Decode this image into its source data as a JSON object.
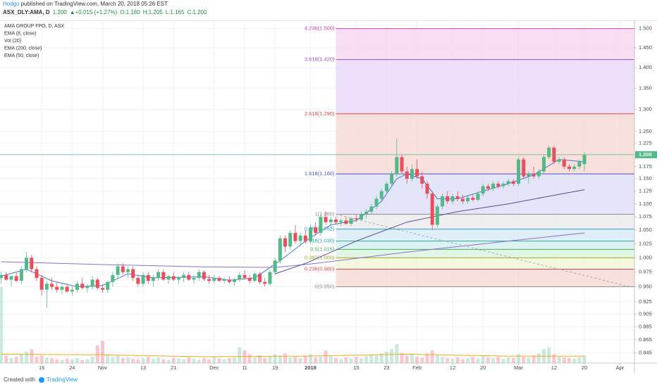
{
  "header": {
    "author": "Hodgo",
    "published": "published on TradingView.com, March 20, 2018 05:26 EST",
    "symbol": "ASX_DLY:AMA, D",
    "price": "1.200",
    "change": "▲+0.015 (+1.27%)",
    "ohlc": [
      "O:1.180",
      "H:1.205",
      "L:1.165",
      "C:1.200"
    ]
  },
  "footer": {
    "created": "Created with",
    "brand": "TradingView"
  },
  "chart_data": {
    "type": "candlestick",
    "legend": [
      "AMA GROUP FPO, D, ASX",
      "EMA (8, close)",
      "Vol (20)",
      "EMA (200, close)",
      "EMA (50, close)"
    ],
    "up_color": "#53b987",
    "down_color": "#eb4d5c",
    "candles": [
      [
        0.965,
        0.975,
        0.955,
        0.97
      ],
      [
        0.97,
        0.975,
        0.96,
        0.962
      ],
      [
        0.962,
        0.97,
        0.95,
        0.968
      ],
      [
        0.968,
        0.975,
        0.958,
        0.96
      ],
      [
        0.96,
        0.985,
        0.955,
        0.98
      ],
      [
        0.98,
        1.01,
        0.975,
        1.0
      ],
      [
        1.0,
        1.005,
        0.975,
        0.98
      ],
      [
        0.98,
        0.985,
        0.96,
        0.965
      ],
      [
        0.965,
        0.97,
        0.935,
        0.945
      ],
      [
        0.945,
        0.96,
        0.915,
        0.955
      ],
      [
        0.955,
        0.965,
        0.945,
        0.95
      ],
      [
        0.95,
        0.958,
        0.94,
        0.945
      ],
      [
        0.945,
        0.955,
        0.938,
        0.95
      ],
      [
        0.95,
        0.955,
        0.94,
        0.942
      ],
      [
        0.942,
        0.95,
        0.935,
        0.945
      ],
      [
        0.945,
        0.96,
        0.94,
        0.955
      ],
      [
        0.955,
        0.965,
        0.945,
        0.948
      ],
      [
        0.948,
        0.955,
        0.94,
        0.95
      ],
      [
        0.95,
        0.968,
        0.945,
        0.962
      ],
      [
        0.962,
        0.965,
        0.945,
        0.948
      ],
      [
        0.948,
        0.955,
        0.94,
        0.945
      ],
      [
        0.945,
        0.96,
        0.94,
        0.958
      ],
      [
        0.958,
        0.975,
        0.95,
        0.97
      ],
      [
        0.97,
        0.99,
        0.965,
        0.985
      ],
      [
        0.985,
        0.99,
        0.97,
        0.975
      ],
      [
        0.975,
        0.985,
        0.965,
        0.98
      ],
      [
        0.98,
        0.985,
        0.96,
        0.965
      ],
      [
        0.965,
        0.97,
        0.95,
        0.955
      ],
      [
        0.955,
        0.975,
        0.95,
        0.97
      ],
      [
        0.97,
        0.975,
        0.955,
        0.96
      ],
      [
        0.96,
        0.97,
        0.95,
        0.965
      ],
      [
        0.965,
        0.98,
        0.96,
        0.975
      ],
      [
        0.975,
        0.98,
        0.96,
        0.962
      ],
      [
        0.962,
        0.97,
        0.955,
        0.968
      ],
      [
        0.968,
        0.975,
        0.96,
        0.962
      ],
      [
        0.962,
        0.968,
        0.955,
        0.965
      ],
      [
        0.965,
        0.975,
        0.958,
        0.97
      ],
      [
        0.97,
        0.975,
        0.96,
        0.962
      ],
      [
        0.962,
        0.97,
        0.955,
        0.965
      ],
      [
        0.965,
        0.98,
        0.96,
        0.975
      ],
      [
        0.975,
        0.978,
        0.96,
        0.963
      ],
      [
        0.963,
        0.97,
        0.955,
        0.96
      ],
      [
        0.96,
        0.97,
        0.955,
        0.965
      ],
      [
        0.965,
        0.968,
        0.958,
        0.96
      ],
      [
        0.96,
        0.965,
        0.955,
        0.962
      ],
      [
        0.962,
        0.968,
        0.955,
        0.958
      ],
      [
        0.958,
        0.965,
        0.952,
        0.962
      ],
      [
        0.962,
        0.975,
        0.958,
        0.97
      ],
      [
        0.97,
        0.978,
        0.962,
        0.965
      ],
      [
        0.965,
        0.97,
        0.955,
        0.96
      ],
      [
        0.96,
        0.975,
        0.958,
        0.972
      ],
      [
        0.972,
        0.975,
        0.955,
        0.958
      ],
      [
        0.958,
        0.965,
        0.95,
        0.955
      ],
      [
        0.955,
        0.978,
        0.952,
        0.975
      ],
      [
        0.975,
        1.0,
        0.97,
        0.995
      ],
      [
        0.995,
        1.04,
        0.99,
        1.035
      ],
      [
        1.035,
        1.04,
        1.01,
        1.02
      ],
      [
        1.02,
        1.05,
        1.015,
        1.045
      ],
      [
        1.045,
        1.06,
        1.025,
        1.03
      ],
      [
        1.03,
        1.045,
        1.02,
        1.04
      ],
      [
        1.04,
        1.05,
        1.025,
        1.03
      ],
      [
        1.03,
        1.06,
        1.025,
        1.055
      ],
      [
        1.055,
        1.065,
        1.04,
        1.045
      ],
      [
        1.045,
        1.08,
        1.04,
        1.075
      ],
      [
        1.075,
        1.085,
        1.06,
        1.065
      ],
      [
        1.065,
        1.075,
        1.055,
        1.07
      ],
      [
        1.07,
        1.075,
        1.06,
        1.065
      ],
      [
        1.065,
        1.072,
        1.058,
        1.068
      ],
      [
        1.068,
        1.075,
        1.06,
        1.062
      ],
      [
        1.062,
        1.075,
        1.058,
        1.072
      ],
      [
        1.072,
        1.08,
        1.065,
        1.07
      ],
      [
        1.07,
        1.085,
        1.068,
        1.08
      ],
      [
        1.08,
        1.09,
        1.072,
        1.085
      ],
      [
        1.085,
        1.1,
        1.08,
        1.095
      ],
      [
        1.095,
        1.115,
        1.09,
        1.11
      ],
      [
        1.11,
        1.13,
        1.105,
        1.125
      ],
      [
        1.125,
        1.145,
        1.12,
        1.14
      ],
      [
        1.14,
        1.165,
        1.135,
        1.16
      ],
      [
        1.16,
        1.235,
        1.155,
        1.195
      ],
      [
        1.195,
        1.2,
        1.16,
        1.165
      ],
      [
        1.165,
        1.175,
        1.14,
        1.15
      ],
      [
        1.15,
        1.18,
        1.145,
        1.17
      ],
      [
        1.17,
        1.19,
        1.15,
        1.155
      ],
      [
        1.155,
        1.165,
        1.13,
        1.14
      ],
      [
        1.14,
        1.145,
        1.11,
        1.12
      ],
      [
        1.12,
        1.125,
        1.05,
        1.06
      ],
      [
        1.06,
        1.1,
        1.055,
        1.095
      ],
      [
        1.095,
        1.12,
        1.09,
        1.115
      ],
      [
        1.115,
        1.125,
        1.1,
        1.105
      ],
      [
        1.105,
        1.12,
        1.1,
        1.115
      ],
      [
        1.115,
        1.125,
        1.105,
        1.11
      ],
      [
        1.11,
        1.118,
        1.1,
        1.105
      ],
      [
        1.105,
        1.115,
        1.1,
        1.112
      ],
      [
        1.112,
        1.118,
        1.105,
        1.108
      ],
      [
        1.108,
        1.125,
        1.105,
        1.12
      ],
      [
        1.12,
        1.14,
        1.115,
        1.135
      ],
      [
        1.135,
        1.14,
        1.125,
        1.13
      ],
      [
        1.13,
        1.145,
        1.125,
        1.14
      ],
      [
        1.14,
        1.145,
        1.13,
        1.135
      ],
      [
        1.135,
        1.145,
        1.13,
        1.14
      ],
      [
        1.14,
        1.15,
        1.135,
        1.145
      ],
      [
        1.145,
        1.15,
        1.135,
        1.14
      ],
      [
        1.14,
        1.195,
        1.135,
        1.19
      ],
      [
        1.19,
        1.195,
        1.15,
        1.155
      ],
      [
        1.155,
        1.165,
        1.14,
        1.16
      ],
      [
        1.16,
        1.175,
        1.15,
        1.155
      ],
      [
        1.155,
        1.17,
        1.15,
        1.165
      ],
      [
        1.165,
        1.2,
        1.16,
        1.195
      ],
      [
        1.195,
        1.22,
        1.19,
        1.215
      ],
      [
        1.215,
        1.22,
        1.18,
        1.185
      ],
      [
        1.185,
        1.195,
        1.18,
        1.19
      ],
      [
        1.19,
        1.195,
        1.17,
        1.175
      ],
      [
        1.175,
        1.18,
        1.165,
        1.17
      ],
      [
        1.17,
        1.18,
        1.165,
        1.175
      ],
      [
        1.175,
        1.19,
        1.17,
        1.185
      ],
      [
        1.18,
        1.205,
        1.165,
        1.2
      ]
    ],
    "volume": [
      120,
      12,
      8,
      10,
      14,
      18,
      22,
      10,
      12,
      9,
      8,
      6,
      5,
      7,
      6,
      8,
      5,
      6,
      10,
      28,
      35,
      14,
      10,
      12,
      8,
      9,
      7,
      6,
      8,
      10,
      7,
      9,
      6,
      5,
      8,
      7,
      6,
      9,
      7,
      5,
      8,
      6,
      10,
      7,
      6,
      8,
      9,
      25,
      20,
      14,
      9,
      12,
      8,
      10,
      14,
      12,
      15,
      9,
      10,
      8,
      11,
      14,
      9,
      10,
      20,
      12,
      8,
      6,
      9,
      7,
      10,
      8,
      11,
      14,
      12,
      15,
      18,
      22,
      30,
      16,
      12,
      14,
      10,
      9,
      15,
      20,
      13,
      10,
      8,
      7,
      9,
      6,
      8,
      10,
      7,
      12,
      9,
      8,
      10,
      7,
      9,
      8,
      14,
      10,
      9,
      12,
      15,
      22,
      25,
      14,
      10,
      9,
      8,
      7,
      9,
      12
    ],
    "lines": [
      {
        "color": "#3c78d8",
        "x": [
          0,
          5,
          10,
          15,
          20,
          25,
          30,
          35,
          40,
          45,
          50,
          55,
          60,
          65,
          70,
          75,
          78,
          80,
          83,
          86,
          90,
          95,
          100,
          105,
          110,
          115
        ],
        "values": [
          0.968,
          0.98,
          0.96,
          0.95,
          0.952,
          0.972,
          0.965,
          0.966,
          0.967,
          0.961,
          0.965,
          0.995,
          1.03,
          1.06,
          1.068,
          1.105,
          1.15,
          1.16,
          1.15,
          1.11,
          1.11,
          1.125,
          1.14,
          1.158,
          1.19,
          1.185
        ]
      },
      {
        "color": "#f5a623",
        "pane": "volume",
        "x": [
          0,
          20,
          40,
          60,
          80,
          100,
          115
        ],
        "values": [
          14,
          13,
          10,
          11,
          14,
          11,
          11
        ]
      },
      {
        "color": "#8e6ccf",
        "x": [
          0,
          20,
          40,
          54,
          62,
          80,
          100,
          115
        ],
        "values": [
          0.993,
          0.988,
          0.984,
          0.983,
          0.99,
          1.01,
          1.03,
          1.045
        ]
      },
      {
        "color": "#5d4a9c",
        "x": [
          54,
          60,
          70,
          80,
          90,
          100,
          108,
          115
        ],
        "values": [
          0.972,
          0.99,
          1.03,
          1.065,
          1.085,
          1.1,
          1.115,
          1.128
        ]
      }
    ],
    "fib": {
      "x_start": 66,
      "levels": [
        {
          "label": "4.236(1.500)",
          "value": 1.5,
          "color": "#d63fb0",
          "fill": "#f7d3ec"
        },
        {
          "label": "3.618(1.420)",
          "value": 1.42,
          "color": "#9c4fd6",
          "fill": "#e6d6f7"
        },
        {
          "label": "2.618(1.290)",
          "value": 1.29,
          "color": "#e04848",
          "fill": "#f6d5d1"
        },
        {
          "label": "1.618(1.160)",
          "value": 1.16,
          "color": "#4a55d0",
          "fill": "#dcdcf7"
        },
        {
          "label": "1(1.080)",
          "value": 1.08,
          "color": "#8f8f8f",
          "fill": "#e9e9e9"
        },
        {
          "label": "0.786(1.052)",
          "value": 1.052,
          "color": "#32a3c9",
          "fill": "#d3eaf4"
        },
        {
          "label": "0.618(1.030)",
          "value": 1.03,
          "color": "#2aa7a0",
          "fill": "#d2efee"
        },
        {
          "label": "0.5(1.015)",
          "value": 1.015,
          "color": "#3fb25a",
          "fill": "#d9f1dc"
        },
        {
          "label": "0.382(1.000)",
          "value": 1.0,
          "color": "#9aae1e",
          "fill": "#eef4d2"
        },
        {
          "label": "0.236(0.980)",
          "value": 0.98,
          "color": "#e04848",
          "fill": "#f6d5d1"
        },
        {
          "label": "0(0.950)",
          "value": 0.95,
          "color": "#8f8f8f",
          "fill": null
        }
      ]
    },
    "trendline": {
      "x": [
        66,
        124
      ],
      "values": [
        1.08,
        0.95
      ],
      "color": "#9598a1"
    },
    "last_price": {
      "value": 1.2,
      "label": "1.200",
      "color": "#53b987"
    },
    "log_scale": true,
    "ylim": [
      0.83,
      1.52
    ],
    "yticks": [
      {
        "value": 1.5,
        "label": "1.500"
      },
      {
        "value": 1.45,
        "label": "1.450"
      },
      {
        "value": 1.4,
        "label": "1.400"
      },
      {
        "value": 1.35,
        "label": "1.350"
      },
      {
        "value": 1.3,
        "label": "1.300"
      },
      {
        "value": 1.25,
        "label": "1.250"
      },
      {
        "value": 1.225,
        "label": "1.225"
      },
      {
        "value": 1.175,
        "label": "1.175"
      },
      {
        "value": 1.15,
        "label": "1.150"
      },
      {
        "value": 1.125,
        "label": "1.125"
      },
      {
        "value": 1.1,
        "label": "1.100"
      },
      {
        "value": 1.075,
        "label": "1.075"
      },
      {
        "value": 1.05,
        "label": "1.050"
      },
      {
        "value": 1.025,
        "label": "1.025"
      },
      {
        "value": 1.0,
        "label": "1.000"
      },
      {
        "value": 0.975,
        "label": "0.975"
      },
      {
        "value": 0.95,
        "label": "0.950"
      },
      {
        "value": 0.925,
        "label": "0.925"
      },
      {
        "value": 0.905,
        "label": "0.905"
      },
      {
        "value": 0.885,
        "label": "0.885"
      },
      {
        "value": 0.865,
        "label": "0.865"
      },
      {
        "value": 0.845,
        "label": "0.845"
      }
    ],
    "xlim": [
      -0.22,
      124.86
    ],
    "xticks": [
      {
        "value": 8,
        "label": "16"
      },
      {
        "value": 14,
        "label": "24"
      },
      {
        "value": 20,
        "label": "Nov"
      },
      {
        "value": 28,
        "label": "13"
      },
      {
        "value": 34,
        "label": "21"
      },
      {
        "value": 42,
        "label": "Dec"
      },
      {
        "value": 48,
        "label": "11"
      },
      {
        "value": 54,
        "label": "19"
      },
      {
        "value": 61,
        "label": "2018"
      },
      {
        "value": 70,
        "label": "15"
      },
      {
        "value": 76,
        "label": "23"
      },
      {
        "value": 82,
        "label": "Feb"
      },
      {
        "value": 89,
        "label": "12"
      },
      {
        "value": 95,
        "label": "20"
      },
      {
        "value": 102,
        "label": "Mar"
      },
      {
        "value": 109,
        "label": "12"
      },
      {
        "value": 115,
        "label": "20"
      },
      {
        "value": 122,
        "label": "Apr"
      }
    ],
    "grid": true
  }
}
